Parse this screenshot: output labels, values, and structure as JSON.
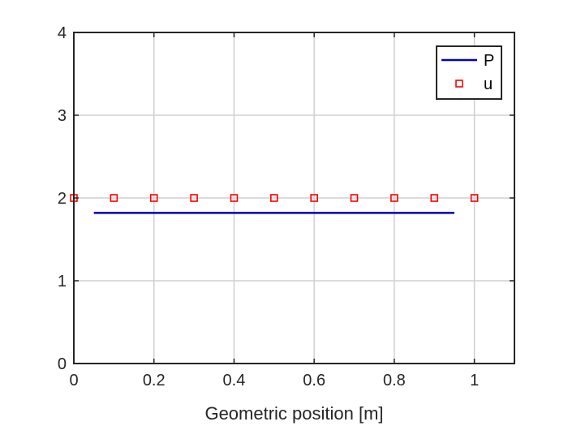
{
  "chart_data": {
    "type": "line",
    "title": "",
    "xlabel": "Geometric position [m]",
    "ylabel": "",
    "xlim": [
      0,
      1.1
    ],
    "ylim": [
      0,
      4
    ],
    "xticks": [
      0,
      0.2,
      0.4,
      0.6,
      0.8,
      1
    ],
    "xtick_labels": [
      "0",
      "0.2",
      "0.4",
      "0.6",
      "0.8",
      "1"
    ],
    "yticks": [
      0,
      1,
      2,
      3,
      4
    ],
    "ytick_labels": [
      "0",
      "1",
      "2",
      "3",
      "4"
    ],
    "grid": true,
    "legend_position": "top-right",
    "series": [
      {
        "name": "P",
        "style": "line",
        "color": "#0000CC",
        "x": [
          0.05,
          0.15,
          0.25,
          0.35,
          0.45,
          0.55,
          0.65,
          0.75,
          0.85,
          0.95
        ],
        "y": [
          1.82,
          1.82,
          1.82,
          1.82,
          1.82,
          1.82,
          1.82,
          1.82,
          1.82,
          1.82
        ]
      },
      {
        "name": "u",
        "style": "square-markers",
        "color": "#FF0000",
        "x": [
          0,
          0.1,
          0.2,
          0.3,
          0.4,
          0.5,
          0.6,
          0.7,
          0.8,
          0.9,
          1.0
        ],
        "y": [
          2,
          2,
          2,
          2,
          2,
          2,
          2,
          2,
          2,
          2,
          2
        ]
      }
    ]
  }
}
